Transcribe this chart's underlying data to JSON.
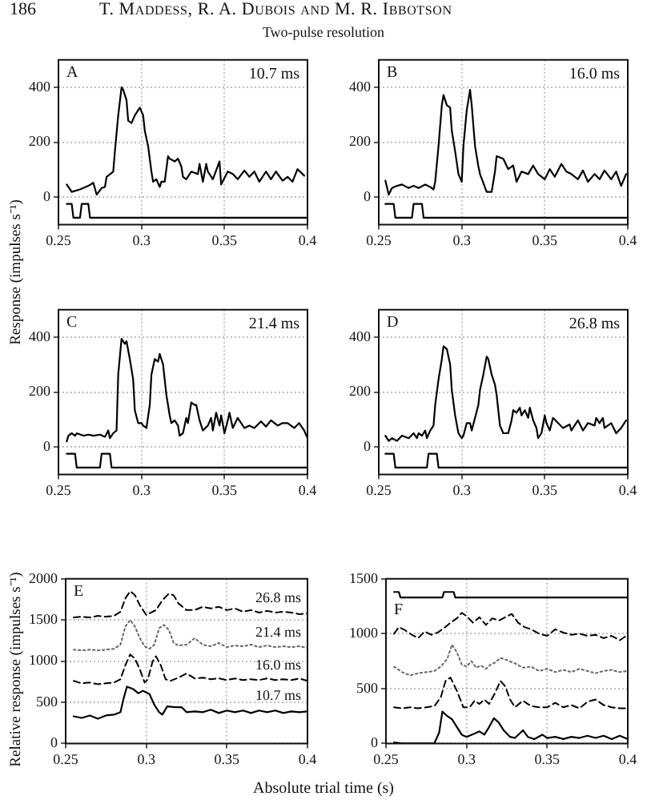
{
  "chart_data": [
    {
      "type": "line",
      "title": "Two-pulse resolution",
      "ylabel": "Response (impulses s⁻¹)",
      "annotations": [
        "186",
        "T. Maddess, R. A. Dubois and M. R. Ibbotson",
        "A",
        "10.7 ms"
      ],
      "xlim": [
        0.25,
        0.4
      ],
      "xticks": [
        0.25,
        0.3,
        0.35,
        0.4
      ],
      "ylim": [
        -100,
        500
      ],
      "yticks": [
        0,
        200,
        400
      ],
      "grid": true,
      "line_style": "solid",
      "series": [
        {
          "color": "#000000",
          "x": [
            0.255,
            0.258,
            0.263,
            0.268,
            0.271,
            0.273,
            0.276,
            0.278,
            0.279,
            0.283,
            0.284,
            0.286,
            0.288,
            0.289,
            0.291,
            0.292,
            0.294,
            0.296,
            0.297,
            0.299,
            0.301,
            0.302,
            0.304,
            0.306,
            0.307,
            0.309,
            0.311,
            0.312,
            0.314,
            0.316,
            0.317,
            0.32,
            0.322,
            0.324,
            0.325,
            0.327,
            0.33,
            0.334,
            0.335,
            0.337,
            0.339,
            0.34,
            0.343,
            0.347,
            0.348,
            0.352,
            0.355,
            0.358,
            0.362,
            0.365,
            0.368,
            0.371,
            0.375,
            0.378,
            0.381,
            0.385,
            0.388,
            0.391,
            0.394,
            0.398
          ],
          "values": [
            46,
            19,
            28,
            41,
            52,
            9,
            33,
            37,
            74,
            93,
            167,
            298,
            400,
            391,
            353,
            279,
            270,
            298,
            307,
            326,
            298,
            242,
            186,
            93,
            56,
            65,
            37,
            56,
            56,
            149,
            140,
            130,
            140,
            112,
            74,
            65,
            93,
            84,
            121,
            56,
            121,
            93,
            65,
            130,
            46,
            93,
            84,
            65,
            97,
            74,
            93,
            56,
            93,
            65,
            93,
            60,
            74,
            56,
            102,
            78
          ]
        },
        {
          "color": "#000000",
          "x": [
            0.255,
            0.258,
            0.259,
            0.263,
            0.264,
            0.268,
            0.269,
            0.4
          ],
          "values": [
            -25,
            -25,
            -75,
            -75,
            -25,
            -25,
            -75,
            -75
          ]
        }
      ]
    },
    {
      "type": "line",
      "annotations": [
        "B",
        "16.0 ms"
      ],
      "xlim": [
        0.25,
        0.4
      ],
      "xticks": [
        0.25,
        0.3,
        0.35,
        0.4
      ],
      "ylim": [
        -100,
        500
      ],
      "yticks": [
        0,
        200,
        400
      ],
      "grid": true,
      "line_style": "solid",
      "series": [
        {
          "color": "#000000",
          "x": [
            0.254,
            0.256,
            0.258,
            0.261,
            0.264,
            0.268,
            0.271,
            0.274,
            0.278,
            0.281,
            0.283,
            0.284,
            0.286,
            0.288,
            0.289,
            0.291,
            0.293,
            0.294,
            0.296,
            0.298,
            0.3,
            0.301,
            0.303,
            0.305,
            0.306,
            0.308,
            0.31,
            0.311,
            0.315,
            0.318,
            0.32,
            0.321,
            0.325,
            0.328,
            0.331,
            0.333,
            0.336,
            0.34,
            0.343,
            0.346,
            0.35,
            0.353,
            0.356,
            0.36,
            0.363,
            0.366,
            0.37,
            0.373,
            0.376,
            0.38,
            0.383,
            0.386,
            0.39,
            0.393,
            0.396,
            0.399
          ],
          "values": [
            60,
            9,
            33,
            41,
            46,
            33,
            41,
            33,
            46,
            37,
            28,
            56,
            186,
            335,
            372,
            335,
            326,
            242,
            167,
            84,
            56,
            186,
            316,
            391,
            335,
            186,
            112,
            84,
            19,
            19,
            93,
            149,
            140,
            102,
            115,
            56,
            93,
            84,
            115,
            84,
            65,
            102,
            74,
            121,
            93,
            84,
            65,
            97,
            56,
            84,
            65,
            97,
            65,
            93,
            41,
            84
          ]
        },
        {
          "color": "#000000",
          "x": [
            0.254,
            0.259,
            0.26,
            0.27,
            0.271,
            0.276,
            0.277,
            0.4
          ],
          "values": [
            -25,
            -25,
            -75,
            -75,
            -25,
            -25,
            -75,
            -75
          ]
        }
      ]
    },
    {
      "type": "line",
      "annotations": [
        "C",
        "21.4 ms"
      ],
      "xlim": [
        0.25,
        0.4
      ],
      "xticks": [
        0.25,
        0.3,
        0.35,
        0.4
      ],
      "ylim": [
        -100,
        500
      ],
      "yticks": [
        0,
        200,
        400
      ],
      "grid": true,
      "line_style": "solid",
      "series": [
        {
          "color": "#000000",
          "x": [
            0.255,
            0.256,
            0.258,
            0.26,
            0.261,
            0.265,
            0.268,
            0.271,
            0.275,
            0.278,
            0.28,
            0.281,
            0.283,
            0.285,
            0.286,
            0.288,
            0.29,
            0.291,
            0.293,
            0.295,
            0.296,
            0.298,
            0.3,
            0.301,
            0.303,
            0.305,
            0.306,
            0.308,
            0.31,
            0.311,
            0.313,
            0.315,
            0.317,
            0.318,
            0.32,
            0.322,
            0.323,
            0.325,
            0.327,
            0.328,
            0.33,
            0.332,
            0.333,
            0.335,
            0.337,
            0.34,
            0.342,
            0.343,
            0.345,
            0.347,
            0.348,
            0.35,
            0.352,
            0.353,
            0.355,
            0.358,
            0.362,
            0.365,
            0.368,
            0.372,
            0.375,
            0.378,
            0.382,
            0.385,
            0.388,
            0.392,
            0.395,
            0.398,
            0.4
          ],
          "values": [
            20,
            41,
            50,
            41,
            50,
            41,
            45,
            41,
            45,
            37,
            60,
            32,
            50,
            60,
            264,
            394,
            376,
            385,
            320,
            246,
            134,
            87,
            87,
            78,
            69,
            153,
            264,
            320,
            311,
            339,
            301,
            190,
            115,
            87,
            97,
            78,
            41,
            50,
            106,
            87,
            162,
            153,
            153,
            97,
            60,
            78,
            106,
            60,
            125,
            78,
            115,
            50,
            97,
            125,
            69,
            106,
            69,
            78,
            69,
            93,
            74,
            97,
            78,
            87,
            87,
            69,
            87,
            60,
            32
          ]
        },
        {
          "color": "#000000",
          "x": [
            0.255,
            0.26,
            0.261,
            0.275,
            0.276,
            0.281,
            0.282,
            0.4
          ],
          "values": [
            -25,
            -25,
            -75,
            -75,
            -25,
            -25,
            -75,
            -75
          ]
        }
      ]
    },
    {
      "type": "line",
      "annotations": [
        "D",
        "26.8 ms"
      ],
      "xlim": [
        0.25,
        0.4
      ],
      "xticks": [
        0.25,
        0.3,
        0.35,
        0.4
      ],
      "ylim": [
        -100,
        500
      ],
      "yticks": [
        0,
        200,
        400
      ],
      "grid": true,
      "line_style": "solid",
      "series": [
        {
          "color": "#000000",
          "x": [
            0.254,
            0.256,
            0.258,
            0.261,
            0.264,
            0.268,
            0.271,
            0.273,
            0.274,
            0.276,
            0.278,
            0.279,
            0.281,
            0.283,
            0.284,
            0.286,
            0.288,
            0.289,
            0.291,
            0.293,
            0.294,
            0.296,
            0.298,
            0.3,
            0.301,
            0.303,
            0.305,
            0.306,
            0.308,
            0.31,
            0.311,
            0.313,
            0.315,
            0.316,
            0.318,
            0.32,
            0.321,
            0.323,
            0.325,
            0.328,
            0.33,
            0.331,
            0.333,
            0.335,
            0.336,
            0.338,
            0.34,
            0.341,
            0.343,
            0.345,
            0.346,
            0.348,
            0.35,
            0.351,
            0.353,
            0.355,
            0.358,
            0.361,
            0.365,
            0.366,
            0.37,
            0.373,
            0.376,
            0.38,
            0.381,
            0.383,
            0.385,
            0.386,
            0.39,
            0.393,
            0.396,
            0.399
          ],
          "values": [
            41,
            22,
            32,
            22,
            41,
            32,
            50,
            32,
            50,
            41,
            60,
            32,
            60,
            78,
            153,
            246,
            320,
            367,
            357,
            301,
            208,
            115,
            50,
            32,
            41,
            87,
            87,
            60,
            106,
            153,
            208,
            264,
            329,
            320,
            264,
            227,
            190,
            78,
            50,
            50,
            97,
            134,
            125,
            143,
            115,
            134,
            106,
            143,
            97,
            69,
            32,
            50,
            115,
            87,
            60,
            106,
            87,
            69,
            82,
            60,
            97,
            60,
            87,
            78,
            106,
            87,
            106,
            69,
            87,
            50,
            69,
            97
          ]
        },
        {
          "color": "#000000",
          "x": [
            0.254,
            0.259,
            0.26,
            0.279,
            0.28,
            0.285,
            0.286,
            0.4
          ],
          "values": [
            -25,
            -25,
            -75,
            -75,
            -25,
            -25,
            -75,
            -75
          ]
        }
      ]
    },
    {
      "type": "line",
      "ylabel": "Relative response (impulses s⁻¹)",
      "xlabel": "Absolute trial time (s)",
      "annotations": [
        "E"
      ],
      "xlim": [
        0.25,
        0.4
      ],
      "xticks": [
        0.25,
        0.3,
        0.35,
        0.4
      ],
      "ylim": [
        0,
        2000
      ],
      "yticks": [
        0,
        500,
        1000,
        1500,
        2000
      ],
      "grid": true,
      "series": [
        {
          "name": "26.8 ms",
          "color": "#000000",
          "line_style": "dashed",
          "x": [
            0.255,
            0.26,
            0.265,
            0.27,
            0.275,
            0.28,
            0.284,
            0.287,
            0.29,
            0.293,
            0.296,
            0.3,
            0.303,
            0.306,
            0.31,
            0.314,
            0.317,
            0.32,
            0.325,
            0.33,
            0.335,
            0.34,
            0.345,
            0.35,
            0.355,
            0.36,
            0.365,
            0.37,
            0.375,
            0.38,
            0.385,
            0.39,
            0.395,
            0.4
          ],
          "values": [
            1530,
            1540,
            1530,
            1550,
            1540,
            1550,
            1600,
            1760,
            1850,
            1800,
            1680,
            1560,
            1590,
            1620,
            1740,
            1820,
            1800,
            1700,
            1620,
            1620,
            1660,
            1640,
            1660,
            1620,
            1640,
            1600,
            1620,
            1590,
            1610,
            1590,
            1600,
            1590,
            1570,
            1580
          ]
        },
        {
          "name": "21.4 ms",
          "color": "#666666",
          "line_style": "dotted",
          "x": [
            0.255,
            0.26,
            0.265,
            0.27,
            0.275,
            0.28,
            0.284,
            0.287,
            0.29,
            0.293,
            0.296,
            0.299,
            0.302,
            0.305,
            0.308,
            0.311,
            0.314,
            0.317,
            0.32,
            0.325,
            0.33,
            0.335,
            0.34,
            0.345,
            0.35,
            0.355,
            0.36,
            0.365,
            0.37,
            0.375,
            0.38,
            0.385,
            0.39,
            0.395,
            0.4
          ],
          "values": [
            1140,
            1130,
            1140,
            1130,
            1140,
            1150,
            1200,
            1420,
            1500,
            1420,
            1280,
            1180,
            1150,
            1200,
            1400,
            1440,
            1380,
            1220,
            1190,
            1200,
            1280,
            1200,
            1180,
            1220,
            1170,
            1190,
            1180,
            1200,
            1170,
            1190,
            1170,
            1180,
            1170,
            1180,
            1160
          ]
        },
        {
          "name": "16.0 ms",
          "color": "#000000",
          "line_style": "dashed",
          "x": [
            0.255,
            0.26,
            0.265,
            0.27,
            0.275,
            0.28,
            0.284,
            0.287,
            0.29,
            0.293,
            0.296,
            0.299,
            0.301,
            0.304,
            0.306,
            0.309,
            0.312,
            0.315,
            0.32,
            0.325,
            0.33,
            0.335,
            0.34,
            0.345,
            0.35,
            0.355,
            0.36,
            0.365,
            0.37,
            0.375,
            0.38,
            0.385,
            0.39,
            0.395,
            0.4
          ],
          "values": [
            760,
            730,
            740,
            720,
            730,
            740,
            780,
            950,
            1080,
            1030,
            900,
            740,
            780,
            1000,
            1060,
            950,
            780,
            760,
            800,
            850,
            790,
            800,
            780,
            790,
            770,
            790,
            770,
            780,
            770,
            790,
            770,
            780,
            770,
            790,
            760
          ]
        },
        {
          "name": "10.7 ms",
          "color": "#000000",
          "line_style": "solid",
          "x": [
            0.255,
            0.26,
            0.265,
            0.27,
            0.275,
            0.28,
            0.284,
            0.286,
            0.288,
            0.292,
            0.295,
            0.298,
            0.3,
            0.302,
            0.305,
            0.308,
            0.31,
            0.313,
            0.318,
            0.322,
            0.325,
            0.33,
            0.335,
            0.34,
            0.345,
            0.35,
            0.355,
            0.36,
            0.365,
            0.37,
            0.375,
            0.38,
            0.385,
            0.39,
            0.395,
            0.4
          ],
          "values": [
            330,
            310,
            340,
            300,
            340,
            350,
            380,
            550,
            690,
            660,
            610,
            640,
            620,
            600,
            470,
            380,
            350,
            450,
            440,
            440,
            380,
            390,
            380,
            410,
            370,
            400,
            380,
            400,
            370,
            400,
            380,
            400,
            370,
            390,
            380,
            390
          ]
        }
      ]
    },
    {
      "type": "line",
      "annotations": [
        "F"
      ],
      "xlim": [
        0.25,
        0.4
      ],
      "xticks": [
        0.25,
        0.3,
        0.35,
        0.4
      ],
      "ylim": [
        0,
        1500
      ],
      "yticks": [
        0,
        500,
        1000,
        1500
      ],
      "grid": true,
      "series": [
        {
          "color": "#000000",
          "line_style": "dashed",
          "x": [
            0.255,
            0.258,
            0.262,
            0.266,
            0.27,
            0.274,
            0.278,
            0.282,
            0.286,
            0.29,
            0.294,
            0.297,
            0.3,
            0.304,
            0.308,
            0.312,
            0.316,
            0.32,
            0.324,
            0.328,
            0.332,
            0.336,
            0.34,
            0.345,
            0.35,
            0.355,
            0.36,
            0.365,
            0.37,
            0.375,
            0.38,
            0.385,
            0.39,
            0.395,
            0.4
          ],
          "values": [
            1000,
            1060,
            1030,
            990,
            960,
            1020,
            990,
            1010,
            1050,
            1100,
            1140,
            1190,
            1160,
            1100,
            1150,
            1080,
            1140,
            1120,
            1150,
            1180,
            1100,
            1060,
            1040,
            1000,
            980,
            1040,
            1010,
            990,
            1000,
            980,
            990,
            960,
            980,
            940,
            990
          ]
        },
        {
          "color": "#666666",
          "line_style": "dotted",
          "x": [
            0.255,
            0.26,
            0.265,
            0.27,
            0.275,
            0.28,
            0.284,
            0.288,
            0.291,
            0.294,
            0.297,
            0.3,
            0.303,
            0.306,
            0.309,
            0.312,
            0.315,
            0.318,
            0.321,
            0.325,
            0.33,
            0.335,
            0.34,
            0.345,
            0.35,
            0.355,
            0.36,
            0.365,
            0.37,
            0.375,
            0.38,
            0.385,
            0.39,
            0.395,
            0.4
          ],
          "values": [
            700,
            650,
            620,
            640,
            650,
            660,
            700,
            770,
            900,
            830,
            720,
            700,
            750,
            690,
            710,
            680,
            720,
            740,
            780,
            760,
            730,
            690,
            700,
            660,
            680,
            650,
            670,
            650,
            680,
            660,
            640,
            660,
            670,
            650,
            660
          ]
        },
        {
          "color": "#000000",
          "line_style": "dashed",
          "x": [
            0.255,
            0.26,
            0.265,
            0.27,
            0.275,
            0.28,
            0.284,
            0.287,
            0.29,
            0.294,
            0.298,
            0.302,
            0.305,
            0.308,
            0.311,
            0.314,
            0.318,
            0.321,
            0.324,
            0.327,
            0.33,
            0.335,
            0.34,
            0.345,
            0.35,
            0.355,
            0.36,
            0.365,
            0.37,
            0.375,
            0.38,
            0.385,
            0.39,
            0.395,
            0.4
          ],
          "values": [
            330,
            320,
            330,
            320,
            330,
            340,
            420,
            570,
            600,
            480,
            330,
            330,
            390,
            360,
            400,
            360,
            470,
            570,
            520,
            400,
            330,
            390,
            340,
            330,
            330,
            370,
            330,
            350,
            320,
            380,
            400,
            350,
            330,
            320,
            320
          ]
        },
        {
          "color": "#000000",
          "line_style": "solid",
          "x": [
            0.255,
            0.26,
            0.27,
            0.28,
            0.283,
            0.285,
            0.288,
            0.291,
            0.294,
            0.297,
            0.3,
            0.305,
            0.308,
            0.311,
            0.314,
            0.317,
            0.32,
            0.323,
            0.327,
            0.33,
            0.335,
            0.338,
            0.342,
            0.347,
            0.35,
            0.355,
            0.36,
            0.365,
            0.37,
            0.375,
            0.38,
            0.385,
            0.39,
            0.395,
            0.4
          ],
          "values": [
            10,
            0,
            0,
            0,
            100,
            290,
            250,
            220,
            150,
            80,
            60,
            90,
            110,
            80,
            150,
            230,
            190,
            120,
            60,
            50,
            120,
            60,
            40,
            80,
            50,
            60,
            40,
            60,
            50,
            70,
            50,
            70,
            40,
            70,
            40
          ]
        },
        {
          "color": "#000000",
          "line_style": "solid",
          "x": [
            0.255,
            0.258,
            0.259,
            0.285,
            0.286,
            0.292,
            0.293,
            0.4
          ],
          "values": [
            1380,
            1380,
            1330,
            1330,
            1380,
            1380,
            1330,
            1330
          ]
        }
      ]
    }
  ]
}
